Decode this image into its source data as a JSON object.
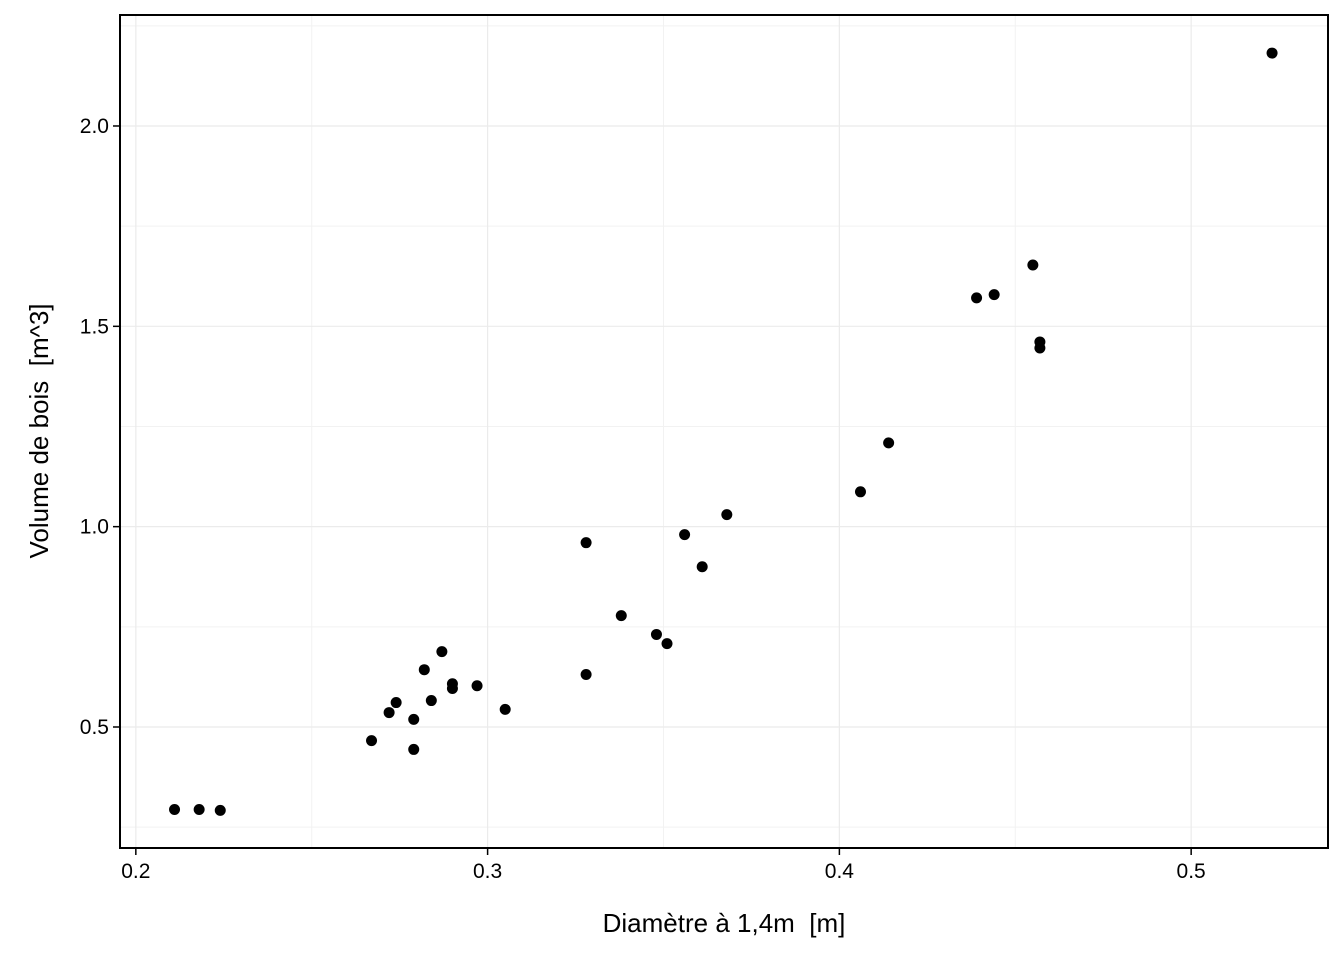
{
  "chart_data": {
    "type": "scatter",
    "x_label": "Diamètre à 1,4m  [m]",
    "y_label": "Volume de bois  [m^3]",
    "color": "#000000",
    "grid": true,
    "xlim": [
      0.1955,
      0.5389
    ],
    "ylim": [
      0.198,
      2.277
    ],
    "xticks": [
      0.2,
      0.3,
      0.4,
      0.5
    ],
    "yticks": [
      {
        "value": 0.5,
        "label": "0.5"
      },
      {
        "value": 1,
        "label": "1.0"
      },
      {
        "value": 1.5,
        "label": "1.5"
      },
      {
        "value": 2,
        "label": "2.0"
      }
    ],
    "x": [
      0.211,
      0.218,
      0.224,
      0.267,
      0.272,
      0.274,
      0.279,
      0.279,
      0.282,
      0.284,
      0.287,
      0.29,
      0.29,
      0.297,
      0.305,
      0.328,
      0.328,
      0.338,
      0.348,
      0.351,
      0.356,
      0.361,
      0.368,
      0.406,
      0.414,
      0.439,
      0.444,
      0.455,
      0.457,
      0.457,
      0.523
    ],
    "values": [
      0.294,
      0.294,
      0.292,
      0.466,
      0.536,
      0.561,
      0.519,
      0.444,
      0.643,
      0.566,
      0.688,
      0.608,
      0.596,
      0.603,
      0.544,
      0.96,
      0.631,
      0.778,
      0.731,
      0.708,
      0.98,
      0.9,
      1.03,
      1.087,
      1.209,
      1.571,
      1.579,
      1.653,
      1.461,
      1.446,
      2.182
    ]
  }
}
